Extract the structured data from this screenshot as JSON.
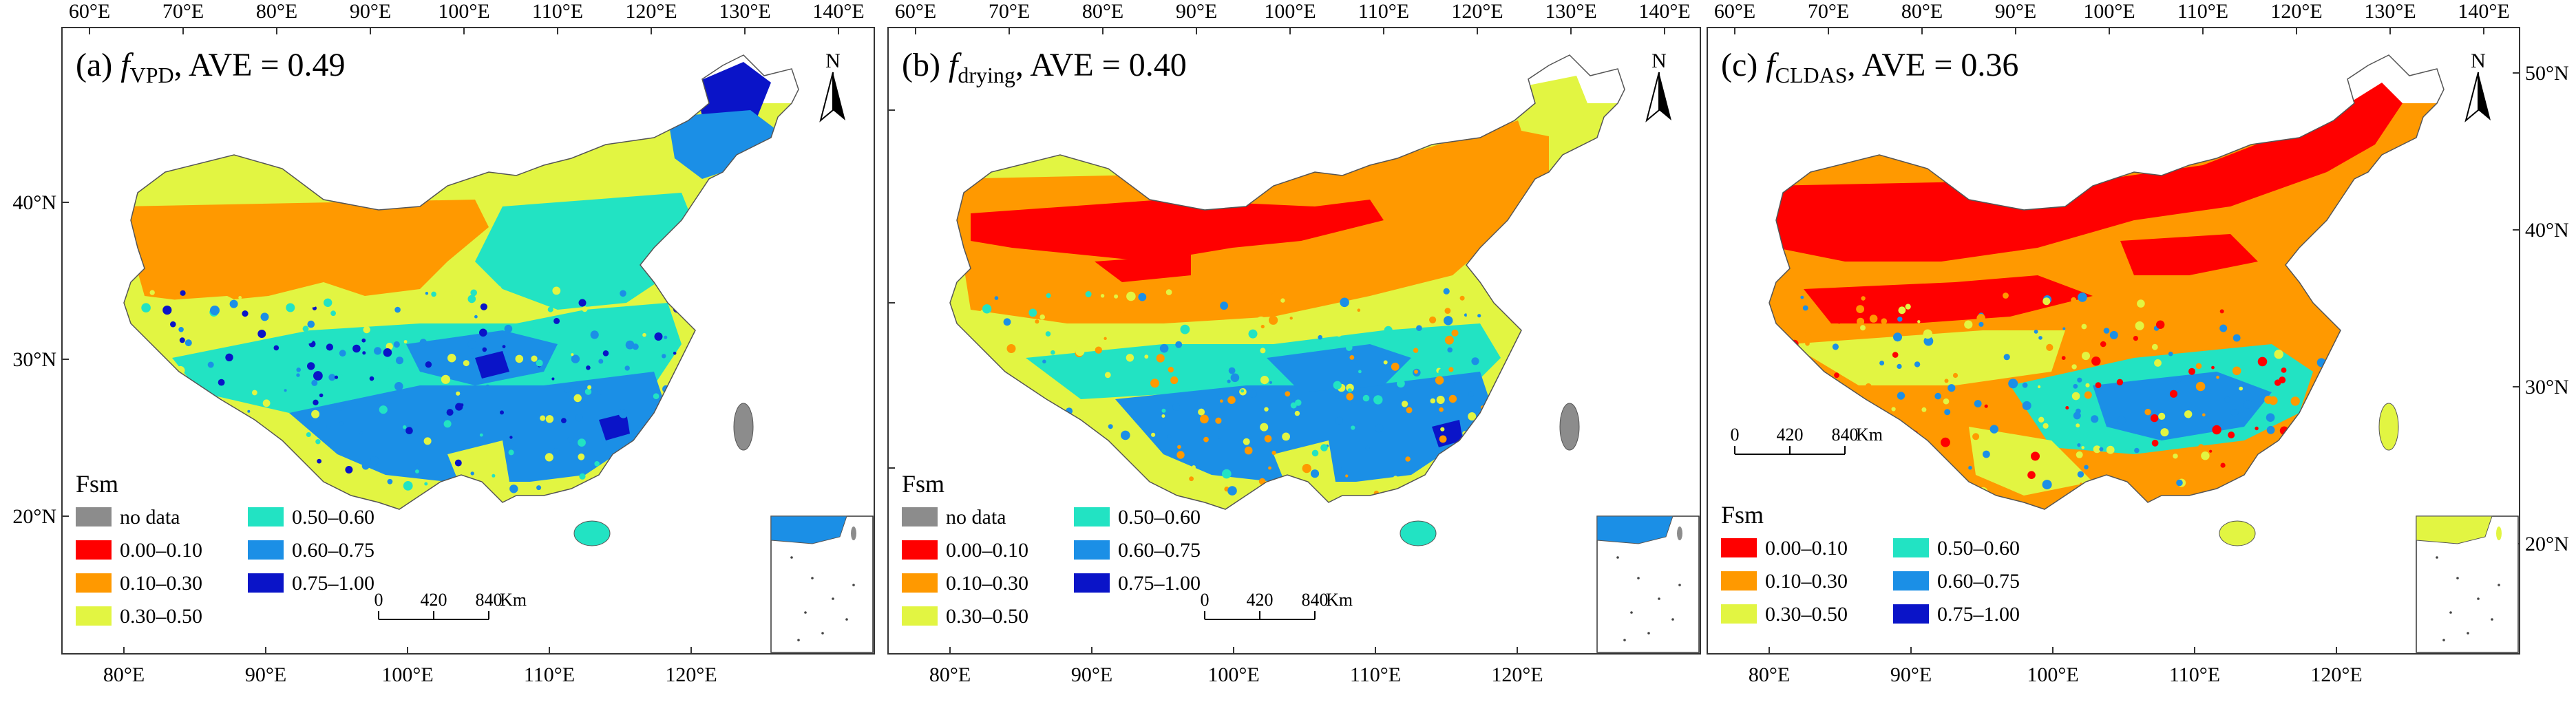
{
  "legend_title": "Fsm",
  "classes": [
    {
      "label": "no data",
      "color": "#8c8c8c"
    },
    {
      "label": "0.00–0.10",
      "color": "#ff0000"
    },
    {
      "label": "0.10–0.30",
      "color": "#ff9900"
    },
    {
      "label": "0.30–0.50",
      "color": "#e2f542"
    },
    {
      "label": "0.50–0.60",
      "color": "#22e3c3"
    },
    {
      "label": "0.60–0.75",
      "color": "#1b8fe6"
    },
    {
      "label": "0.75–1.00",
      "color": "#0a14c8"
    }
  ],
  "scale_bar": {
    "ticks": [
      "0",
      "420",
      "840"
    ],
    "unit": "Km"
  },
  "north_label": "N",
  "top_lon_ticks": [
    "60°E",
    "70°E",
    "80°E",
    "90°E",
    "100°E",
    "110°E",
    "120°E",
    "130°E",
    "140°E"
  ],
  "bottom_lon_ticks": [
    "80°E",
    "90°E",
    "100°E",
    "110°E",
    "120°E"
  ],
  "panels": [
    {
      "id": "a",
      "prefix": "(a) ",
      "f": "f",
      "sub": "VPD",
      "stat": ", AVE = 0.49",
      "lat_ticks": [
        "20°N",
        "30°N",
        "40°N"
      ],
      "lat_side": "left",
      "has_no_data": true
    },
    {
      "id": "b",
      "prefix": "(b) ",
      "f": "f",
      "sub": "drying",
      "stat": ", AVE = 0.40",
      "lat_ticks": [],
      "lat_side": "none",
      "has_no_data": true
    },
    {
      "id": "c",
      "prefix": "(c) ",
      "f": "f",
      "sub": "CLDAS",
      "stat": ", AVE = 0.36",
      "lat_ticks": [
        "20°N",
        "30°N",
        "40°N",
        "50°N"
      ],
      "lat_side": "right",
      "has_no_data": false
    }
  ]
}
